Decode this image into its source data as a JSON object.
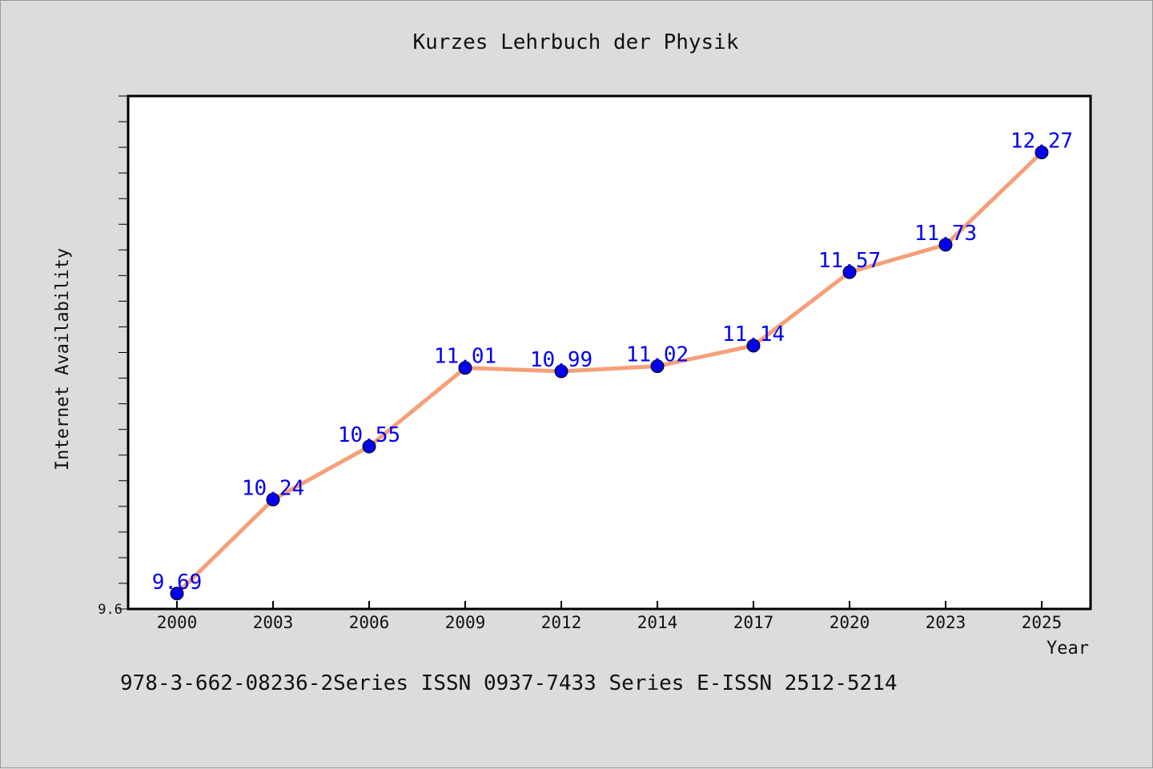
{
  "chart_data": {
    "type": "line",
    "title": "Kurzes Lehrbuch der Physik",
    "xlabel": "Year",
    "ylabel": "Internet Availability",
    "categories": [
      "2000",
      "2003",
      "2006",
      "2009",
      "2012",
      "2014",
      "2017",
      "2020",
      "2023",
      "2025"
    ],
    "series": [
      {
        "values": [
          9.69,
          10.24,
          10.55,
          11.01,
          10.99,
          11.02,
          11.14,
          11.57,
          11.73,
          12.27
        ]
      }
    ],
    "data_labels": [
      "9.69",
      "10.24",
      "10.55",
      "11.01",
      "10.99",
      "11.02",
      "11.14",
      "11.57",
      "11.73",
      "12.27"
    ],
    "y_min_label": "9.6",
    "ylim": [
      9.6,
      12.6
    ],
    "grid": false,
    "legend": "none",
    "colors": {
      "line": "#f4a07a",
      "marker": "#0000ee",
      "label": "#0000ee",
      "background": "#dcdcdc",
      "plot_bg": "#ffffff"
    }
  },
  "caption": "978-3-662-08236-2Series ISSN 0937-7433 Series E-ISSN 2512-5214"
}
